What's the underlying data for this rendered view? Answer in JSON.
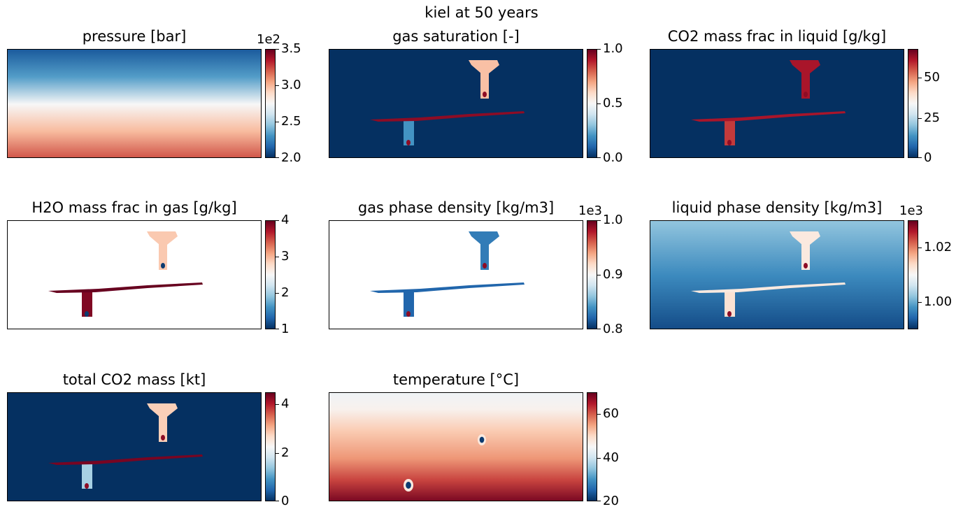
{
  "figure": {
    "title": "kiel at 50 years"
  },
  "colors": {
    "cmap": [
      "#053061",
      "#2166ac",
      "#4393c3",
      "#92c5de",
      "#d1e5f0",
      "#f7f7f7",
      "#fddbc7",
      "#f4a582",
      "#d6604d",
      "#b2182b",
      "#67001f"
    ]
  },
  "chart_data": [
    {
      "type": "heatmap",
      "title": "pressure [bar]",
      "colorbar": {
        "min": 2.0,
        "max": 3.5,
        "ticks": [
          "2.0",
          "2.5",
          "3.0",
          "3.5"
        ],
        "tick_values": [
          2.0,
          2.5,
          3.0,
          3.5
        ],
        "multiplier": "1e2"
      },
      "field": "vertical-gradient",
      "background_value": null
    },
    {
      "type": "heatmap",
      "title": "gas saturation [-]",
      "colorbar": {
        "min": 0.0,
        "max": 1.0,
        "ticks": [
          "0.0",
          "0.5",
          "1.0"
        ],
        "tick_values": [
          0.0,
          0.5,
          1.0
        ],
        "multiplier": ""
      },
      "field": "plume",
      "background_value": 0.0,
      "layer_value": 0.95,
      "upper_plume_value": 0.65,
      "lower_plume_value": 0.2
    },
    {
      "type": "heatmap",
      "title": "CO2 mass frac in liquid [g/kg]",
      "colorbar": {
        "min": 0,
        "max": 68,
        "ticks": [
          "0",
          "25",
          "50"
        ],
        "tick_values": [
          0,
          25,
          50
        ],
        "multiplier": ""
      },
      "field": "plume",
      "background_value": 0,
      "layer_value": 62,
      "upper_plume_value": 62,
      "lower_plume_value": 58
    },
    {
      "type": "heatmap",
      "title": "H2O mass frac in gas [g/kg]",
      "colorbar": {
        "min": 1,
        "max": 4,
        "ticks": [
          "1",
          "2",
          "3",
          "4"
        ],
        "tick_values": [
          1,
          2,
          3,
          4
        ],
        "multiplier": ""
      },
      "field": "plume",
      "background_value": null,
      "layer_value": 4.0,
      "upper_plume_value": 2.9,
      "lower_plume_value": 3.9
    },
    {
      "type": "heatmap",
      "title": "gas phase density [kg/m3]",
      "colorbar": {
        "min": 0.8,
        "max": 1.0,
        "ticks": [
          "0.8",
          "0.9",
          "1.0"
        ],
        "tick_values": [
          0.8,
          0.9,
          1.0
        ],
        "multiplier": "1e3"
      },
      "field": "plume",
      "background_value": null,
      "layer_value": 0.82,
      "upper_plume_value": 0.83,
      "lower_plume_value": 0.82
    },
    {
      "type": "heatmap",
      "title": "liquid phase density [kg/m3]",
      "colorbar": {
        "min": 0.99,
        "max": 1.03,
        "ticks": [
          "1.00",
          "1.02"
        ],
        "tick_values": [
          1.0,
          1.02
        ],
        "multiplier": "1e3"
      },
      "field": "plume",
      "background_value": 1.0,
      "layer_value": 1.012,
      "upper_plume_value": 1.012,
      "lower_plume_value": 1.013
    },
    {
      "type": "heatmap",
      "title": "total CO2 mass [kt]",
      "colorbar": {
        "min": 0,
        "max": 4.5,
        "ticks": [
          "0",
          "2",
          "4"
        ],
        "tick_values": [
          0,
          2,
          4
        ],
        "multiplier": ""
      },
      "field": "plume",
      "background_value": 0,
      "layer_value": 4.4,
      "upper_plume_value": 2.8,
      "lower_plume_value": 1.5
    },
    {
      "type": "heatmap",
      "title": "temperature [°C]",
      "colorbar": {
        "min": 20,
        "max": 70,
        "ticks": [
          "20",
          "40",
          "60"
        ],
        "tick_values": [
          20,
          40,
          60
        ],
        "multiplier": ""
      },
      "field": "vertical-gradient-temperature",
      "background_value": null
    }
  ]
}
